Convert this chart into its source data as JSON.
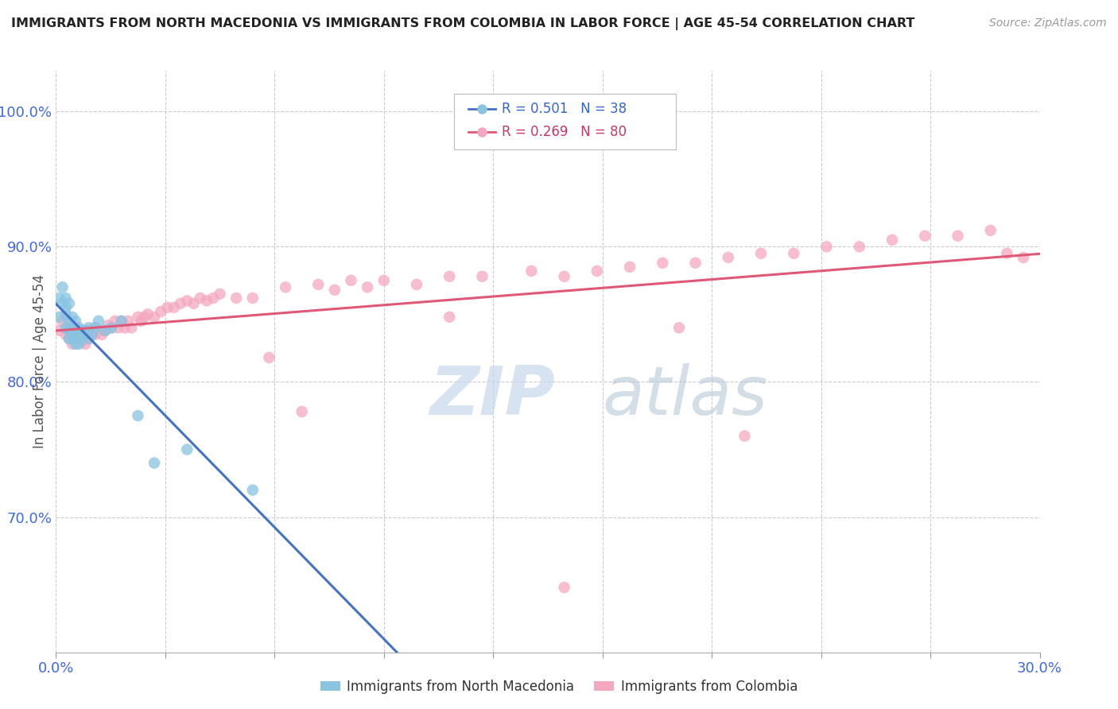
{
  "title": "IMMIGRANTS FROM NORTH MACEDONIA VS IMMIGRANTS FROM COLOMBIA IN LABOR FORCE | AGE 45-54 CORRELATION CHART",
  "source": "Source: ZipAtlas.com",
  "legend_blue_r": "R = 0.501",
  "legend_blue_n": "N = 38",
  "legend_pink_r": "R = 0.269",
  "legend_pink_n": "N = 80",
  "legend_label_blue": "Immigrants from North Macedonia",
  "legend_label_pink": "Immigrants from Colombia",
  "blue_color": "#89c4e1",
  "pink_color": "#f4a8c0",
  "blue_line_color": "#4472c4",
  "pink_line_color": "#e05878",
  "axis_label_color": "#4169e1",
  "title_color": "#222222",
  "xlim": [
    0.0,
    0.3
  ],
  "ylim": [
    0.6,
    1.03
  ],
  "yticks": [
    0.7,
    0.8,
    0.9,
    1.0
  ],
  "ytick_labels": [
    "70.0%",
    "80.0%",
    "90.0%",
    "100.0%"
  ],
  "blue_scatter_x": [
    0.001,
    0.001,
    0.002,
    0.002,
    0.003,
    0.003,
    0.003,
    0.003,
    0.004,
    0.004,
    0.004,
    0.004,
    0.005,
    0.005,
    0.005,
    0.005,
    0.006,
    0.006,
    0.006,
    0.007,
    0.007,
    0.007,
    0.008,
    0.008,
    0.009,
    0.009,
    0.01,
    0.01,
    0.011,
    0.012,
    0.013,
    0.015,
    0.017,
    0.02,
    0.025,
    0.03,
    0.04,
    0.06
  ],
  "blue_scatter_y": [
    0.862,
    0.848,
    0.87,
    0.858,
    0.855,
    0.85,
    0.862,
    0.84,
    0.858,
    0.845,
    0.838,
    0.832,
    0.848,
    0.84,
    0.832,
    0.835,
    0.845,
    0.835,
    0.828,
    0.84,
    0.835,
    0.828,
    0.838,
    0.832,
    0.838,
    0.835,
    0.84,
    0.832,
    0.835,
    0.84,
    0.845,
    0.838,
    0.84,
    0.845,
    0.775,
    0.74,
    0.75,
    0.72
  ],
  "pink_scatter_x": [
    0.001,
    0.002,
    0.003,
    0.004,
    0.004,
    0.005,
    0.005,
    0.006,
    0.006,
    0.007,
    0.007,
    0.008,
    0.008,
    0.009,
    0.009,
    0.01,
    0.01,
    0.011,
    0.012,
    0.012,
    0.013,
    0.014,
    0.015,
    0.016,
    0.017,
    0.018,
    0.019,
    0.02,
    0.021,
    0.022,
    0.023,
    0.025,
    0.026,
    0.027,
    0.028,
    0.03,
    0.032,
    0.034,
    0.036,
    0.038,
    0.04,
    0.042,
    0.044,
    0.046,
    0.048,
    0.05,
    0.055,
    0.06,
    0.065,
    0.07,
    0.075,
    0.08,
    0.085,
    0.09,
    0.095,
    0.1,
    0.11,
    0.12,
    0.13,
    0.145,
    0.155,
    0.165,
    0.175,
    0.185,
    0.195,
    0.205,
    0.215,
    0.225,
    0.235,
    0.245,
    0.255,
    0.265,
    0.275,
    0.285,
    0.295,
    0.21,
    0.155,
    0.19,
    0.12,
    0.29
  ],
  "pink_scatter_y": [
    0.838,
    0.845,
    0.835,
    0.84,
    0.832,
    0.838,
    0.828,
    0.84,
    0.832,
    0.838,
    0.832,
    0.838,
    0.83,
    0.835,
    0.828,
    0.838,
    0.832,
    0.835,
    0.84,
    0.835,
    0.838,
    0.835,
    0.838,
    0.842,
    0.84,
    0.845,
    0.84,
    0.845,
    0.84,
    0.845,
    0.84,
    0.848,
    0.845,
    0.848,
    0.85,
    0.848,
    0.852,
    0.855,
    0.855,
    0.858,
    0.86,
    0.858,
    0.862,
    0.86,
    0.862,
    0.865,
    0.862,
    0.862,
    0.818,
    0.87,
    0.778,
    0.872,
    0.868,
    0.875,
    0.87,
    0.875,
    0.872,
    0.878,
    0.878,
    0.882,
    0.878,
    0.882,
    0.885,
    0.888,
    0.888,
    0.892,
    0.895,
    0.895,
    0.9,
    0.9,
    0.905,
    0.908,
    0.908,
    0.912,
    0.892,
    0.76,
    0.648,
    0.84,
    0.848,
    0.895
  ]
}
